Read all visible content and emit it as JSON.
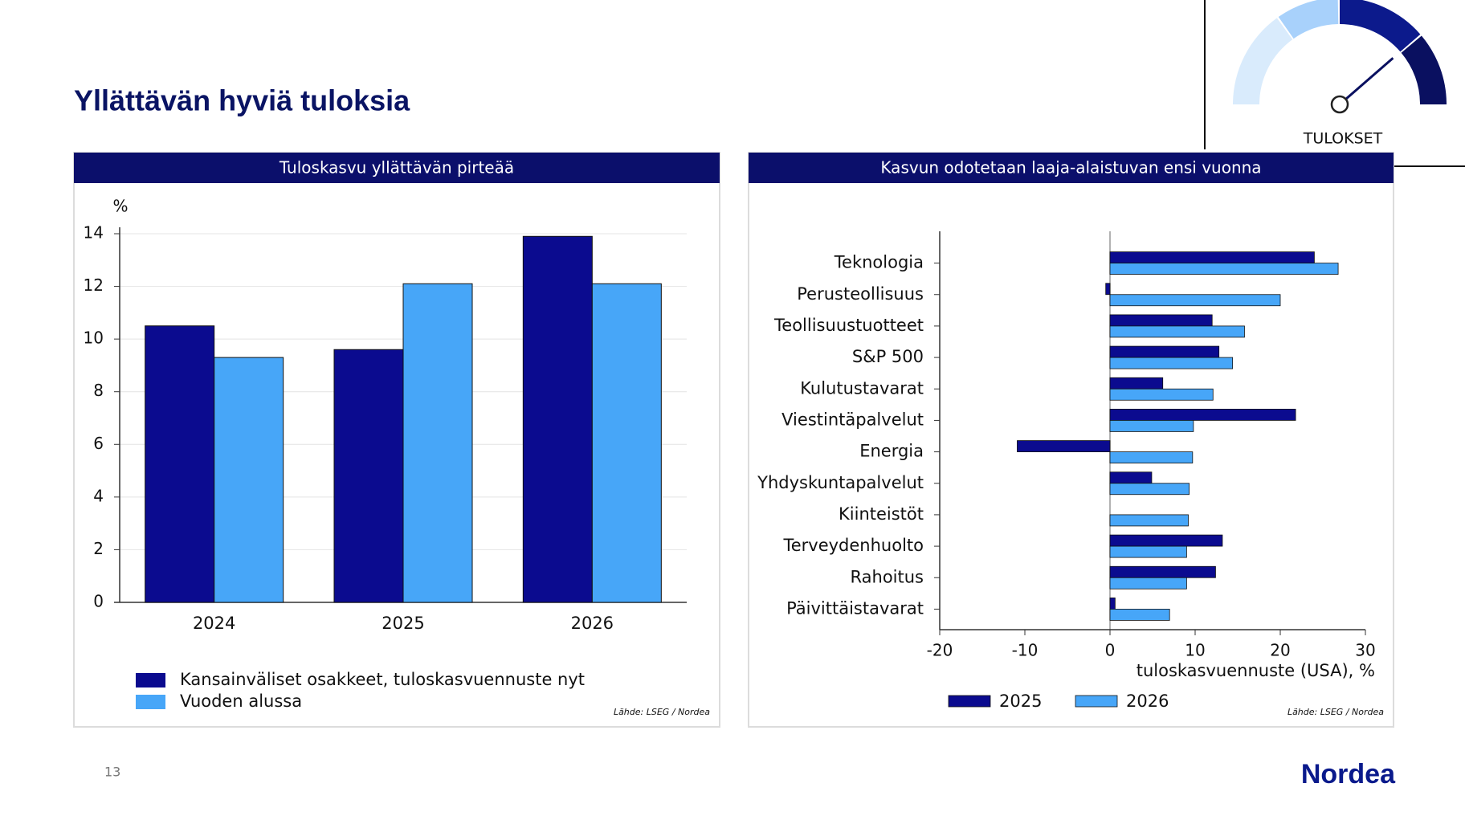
{
  "title": "Yllättävän hyviä tuloksia",
  "gauge_label": "TULOKSET",
  "page_number": "13",
  "logo": "Nordea",
  "chart_data": [
    {
      "type": "bar",
      "title": "Tuloskasvu yllättävän pirteää",
      "y_label": "%",
      "categories": [
        "2024",
        "2025",
        "2026"
      ],
      "series": [
        {
          "name": "Kansainväliset osakkeet, tuloskasvuennuste nyt",
          "color": "#0b0b8f",
          "values": [
            10.5,
            9.6,
            13.9
          ]
        },
        {
          "name": "Vuoden alussa",
          "color": "#47a6f8",
          "values": [
            9.3,
            12.1,
            12.1
          ]
        }
      ],
      "ylim": [
        0,
        14
      ],
      "yticks": [
        0,
        2,
        4,
        6,
        8,
        10,
        12,
        14
      ],
      "grid": true,
      "source": "Lähde: LSEG / Nordea"
    },
    {
      "type": "barh",
      "title": "Kasvun odotetaan laaja-alaistuvan ensi vuonna",
      "categories": [
        "Teknologia",
        "Perusteollisuus",
        "Teollisuustuotteet",
        "S&P 500",
        "Kulutustavarat",
        "Viestintäpalvelut",
        "Energia",
        "Yhdyskuntapalvelut",
        "Kiinteistöt",
        "Terveydenhuolto",
        "Rahoitus",
        "Päivittäistavarat"
      ],
      "series": [
        {
          "name": "2025",
          "color": "#0b0b8f",
          "values": [
            24,
            -0.5,
            12,
            12.8,
            6.2,
            21.8,
            -10.9,
            4.9,
            0,
            13.2,
            12.4,
            0.6
          ]
        },
        {
          "name": "2026",
          "color": "#47a6f8",
          "values": [
            26.8,
            20,
            15.8,
            14.4,
            12.1,
            9.8,
            9.7,
            9.3,
            9.2,
            9,
            9,
            7
          ]
        }
      ],
      "xlim": [
        -20,
        30
      ],
      "xticks": [
        -20,
        -10,
        0,
        10,
        20,
        30
      ],
      "x_label": "tuloskasvuennuste (USA), %",
      "source": "Lähde: LSEG / Nordea"
    }
  ]
}
